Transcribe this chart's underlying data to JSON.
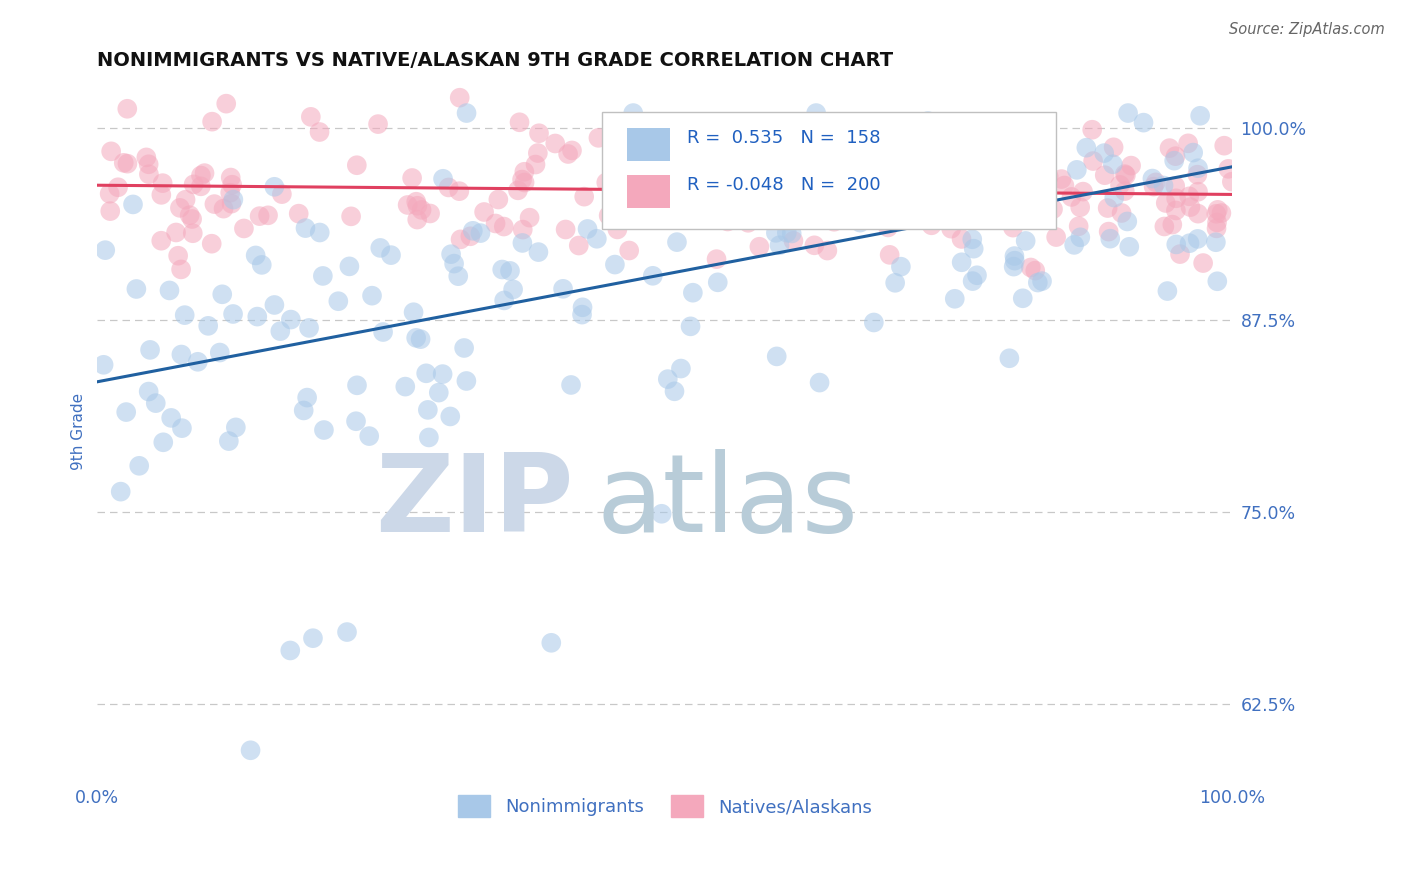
{
  "title": "NONIMMIGRANTS VS NATIVE/ALASKAN 9TH GRADE CORRELATION CHART",
  "source_text": "Source: ZipAtlas.com",
  "ylabel": "9th Grade",
  "xlim": [
    0.0,
    1.0
  ],
  "ylim": [
    0.575,
    1.03
  ],
  "yticks": [
    0.625,
    0.75,
    0.875,
    1.0
  ],
  "ytick_labels": [
    "62.5%",
    "75.0%",
    "87.5%",
    "100.0%"
  ],
  "xticks": [
    0.0,
    0.25,
    0.5,
    0.75,
    1.0
  ],
  "xtick_labels": [
    "0.0%",
    "",
    "",
    "",
    "100.0%"
  ],
  "blue_R": 0.535,
  "blue_N": 158,
  "pink_R": -0.048,
  "pink_N": 200,
  "blue_color": "#a8c8e8",
  "pink_color": "#f4a8bc",
  "blue_line_color": "#2060a0",
  "pink_line_color": "#e04060",
  "legend_text_color": "#2060c0",
  "axis_color": "#4070c0",
  "grid_color": "#c8c8c8",
  "watermark_zip_color": "#ccd8e8",
  "watermark_atlas_color": "#b8ccd8",
  "background_color": "#ffffff",
  "seed": 42,
  "blue_line_y0": 0.835,
  "blue_line_y1": 0.975,
  "pink_line_y0": 0.963,
  "pink_line_y1": 0.957
}
